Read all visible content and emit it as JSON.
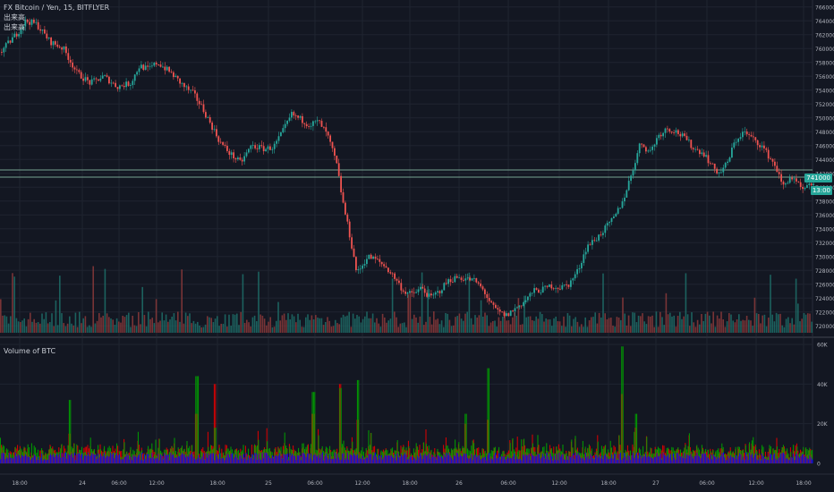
{
  "main_chart": {
    "title": "FX Bitcoin / Yen, 15, BITFLYER",
    "legend_lines": [
      "出来高",
      "出来高"
    ],
    "price_ticks": [
      "766000",
      "764000",
      "762000",
      "760000",
      "758000",
      "756000",
      "754000",
      "752000",
      "750000",
      "748000",
      "746000",
      "744000",
      "742000",
      "740000",
      "738000",
      "736000",
      "734000",
      "732000",
      "730000",
      "728000",
      "726000",
      "724000",
      "722000",
      "720000"
    ],
    "current_price_tag": "741000",
    "countdown_tag": "13:00",
    "colors": {
      "up": "#26a69a",
      "down": "#ef5350",
      "background": "#131722",
      "grid": "#1f2430",
      "line": "#9ad3b8"
    }
  },
  "volume_panel": {
    "title": "Volume of BTC",
    "y_ticks": [
      "60K",
      "40K",
      "20K",
      "0"
    ],
    "colors": {
      "buy": "#00a000",
      "sell": "#e00000",
      "base": "#0000ff"
    }
  },
  "x_ticks": [
    "18:00",
    "24",
    "06:00",
    "12:00",
    "18:00",
    "25",
    "06:00",
    "12:00",
    "18:00",
    "26",
    "06:00",
    "12:00",
    "18:00",
    "27",
    "06:00",
    "12:00",
    "18:00"
  ],
  "chart_data": [
    {
      "type": "candlestick",
      "title": "FX Bitcoin / Yen, 15, BITFLYER",
      "ylim": [
        719000,
        767000
      ],
      "series": [
        {
          "name": "FX Bitcoin / Yen",
          "close_path_anchors": [
            [
              0,
              759500
            ],
            [
              20,
              762500
            ],
            [
              28,
              764000
            ],
            [
              40,
              763500
            ],
            [
              55,
              761000
            ],
            [
              70,
              760000
            ],
            [
              85,
              756500
            ],
            [
              100,
              755000
            ],
            [
              115,
              756000
            ],
            [
              130,
              754500
            ],
            [
              145,
              755000
            ],
            [
              155,
              757500
            ],
            [
              165,
              757000
            ],
            [
              175,
              758000
            ],
            [
              190,
              756500
            ],
            [
              205,
              754500
            ],
            [
              215,
              753500
            ],
            [
              225,
              751500
            ],
            [
              235,
              749000
            ],
            [
              245,
              746500
            ],
            [
              255,
              745000
            ],
            [
              268,
              743500
            ],
            [
              280,
              746000
            ],
            [
              295,
              745500
            ],
            [
              305,
              745800
            ],
            [
              315,
              748000
            ],
            [
              325,
              750500
            ],
            [
              335,
              749800
            ],
            [
              345,
              749000
            ],
            [
              355,
              749500
            ],
            [
              365,
              747500
            ],
            [
              375,
              743500
            ],
            [
              382,
              738000
            ],
            [
              390,
              733000
            ],
            [
              398,
              727500
            ],
            [
              410,
              730000
            ],
            [
              420,
              729500
            ],
            [
              430,
              728500
            ],
            [
              440,
              727000
            ],
            [
              450,
              725000
            ],
            [
              460,
              724500
            ],
            [
              470,
              725500
            ],
            [
              480,
              724000
            ],
            [
              490,
              725000
            ],
            [
              500,
              726500
            ],
            [
              510,
              727000
            ],
            [
              520,
              726800
            ],
            [
              530,
              726500
            ],
            [
              540,
              725000
            ],
            [
              548,
              723000
            ],
            [
              556,
              722000
            ],
            [
              565,
              721500
            ],
            [
              575,
              722500
            ],
            [
              585,
              723500
            ],
            [
              595,
              725000
            ],
            [
              605,
              725200
            ],
            [
              615,
              725800
            ],
            [
              625,
              725500
            ],
            [
              635,
              726000
            ],
            [
              645,
              728000
            ],
            [
              655,
              731500
            ],
            [
              665,
              732500
            ],
            [
              675,
              734000
            ],
            [
              685,
              735500
            ],
            [
              695,
              738000
            ],
            [
              705,
              742000
            ],
            [
              715,
              746500
            ],
            [
              725,
              745000
            ],
            [
              735,
              747500
            ],
            [
              745,
              748500
            ],
            [
              755,
              748000
            ],
            [
              765,
              747000
            ],
            [
              775,
              745500
            ],
            [
              785,
              745000
            ],
            [
              795,
              743000
            ],
            [
              803,
              742000
            ],
            [
              812,
              743500
            ],
            [
              820,
              746500
            ],
            [
              830,
              748000
            ],
            [
              840,
              747000
            ],
            [
              850,
              746000
            ],
            [
              858,
              744500
            ],
            [
              866,
              743000
            ],
            [
              874,
              740000
            ],
            [
              882,
              741500
            ],
            [
              890,
              740500
            ],
            [
              896,
              739500
            ],
            [
              904,
              740200
            ],
            [
              912,
              741000
            ]
          ]
        }
      ]
    },
    {
      "type": "bar",
      "title": "Volume of BTC",
      "ylim": [
        0,
        60000
      ],
      "y_ticks": [
        "60K",
        "40K",
        "20K",
        "0"
      ],
      "series": [
        {
          "name": "buy",
          "peaks": [
            [
              20,
              5000
            ],
            [
              78,
              32000
            ],
            [
              220,
              44000
            ],
            [
              240,
              18000
            ],
            [
              350,
              36000
            ],
            [
              380,
              38000
            ],
            [
              400,
              42000
            ],
            [
              520,
              25000
            ],
            [
              545,
              48000
            ],
            [
              695,
              59000
            ],
            [
              710,
              25000
            ]
          ]
        },
        {
          "name": "sell",
          "peaks": [
            [
              20,
              6000
            ],
            [
              78,
              15000
            ],
            [
              220,
              25000
            ],
            [
              240,
              40000
            ],
            [
              350,
              25000
            ],
            [
              380,
              40000
            ],
            [
              400,
              22000
            ],
            [
              520,
              20000
            ],
            [
              545,
              22000
            ],
            [
              695,
              35000
            ],
            [
              710,
              18000
            ]
          ]
        }
      ]
    }
  ]
}
